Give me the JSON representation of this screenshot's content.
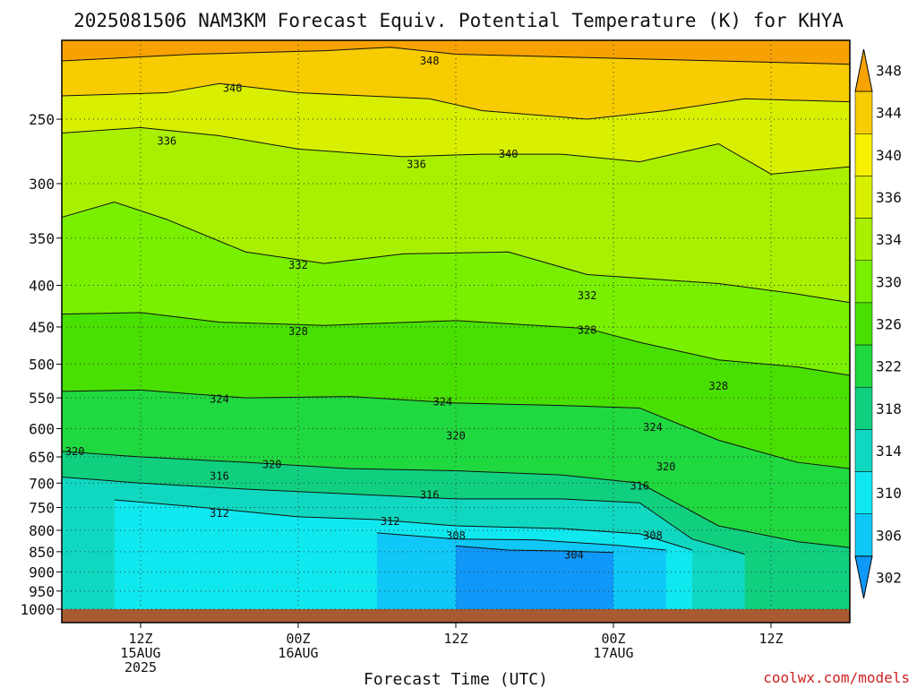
{
  "chart_data": {
    "type": "heatmap",
    "title": "2025081506 NAM3KM Forecast Equiv. Potential Temperature (K) for KHYA",
    "xlabel": "Forecast Time (UTC)",
    "ylabel": "",
    "credit": "coolwx.com/models",
    "pressure_ticks": [
      250,
      300,
      350,
      400,
      450,
      500,
      550,
      600,
      650,
      700,
      750,
      800,
      850,
      900,
      950,
      1000
    ],
    "pressure_range": [
      1000,
      200
    ],
    "time_range_hours": [
      0,
      60
    ],
    "grid": true,
    "time_ticks": [
      {
        "hour": 6,
        "lines": [
          "12Z",
          "15AUG",
          "2025"
        ]
      },
      {
        "hour": 18,
        "lines": [
          "00Z",
          "16AUG"
        ]
      },
      {
        "hour": 30,
        "lines": [
          "12Z"
        ]
      },
      {
        "hour": 42,
        "lines": [
          "00Z",
          "17AUG"
        ]
      },
      {
        "hour": 54,
        "lines": [
          "12Z"
        ]
      }
    ],
    "colorbar": {
      "levels": [
        348,
        344,
        340,
        336,
        334,
        330,
        326,
        322,
        318,
        314,
        310,
        306,
        302
      ],
      "colors": [
        "#f7a200",
        "#f7cc00",
        "#f7f000",
        "#d8f000",
        "#a8f000",
        "#78f000",
        "#48e000",
        "#20d840",
        "#10d080",
        "#10d8c0",
        "#10e8f0",
        "#10c8f8",
        "#1098f8"
      ]
    },
    "series": [
      {
        "name": "348",
        "level": 348,
        "values": [
          [
            0,
            212
          ],
          [
            10,
            208
          ],
          [
            20,
            206
          ],
          [
            25,
            204
          ],
          [
            30,
            208
          ],
          [
            40,
            210
          ],
          [
            50,
            212
          ],
          [
            60,
            214
          ]
        ]
      },
      {
        "name": "340",
        "level": 340,
        "values": [
          [
            0,
            234
          ],
          [
            8,
            232
          ],
          [
            12,
            226
          ],
          [
            18,
            232
          ],
          [
            28,
            236
          ],
          [
            32,
            244
          ],
          [
            40,
            250
          ],
          [
            46,
            244
          ],
          [
            52,
            236
          ],
          [
            60,
            238
          ]
        ]
      },
      {
        "name": "336",
        "level": 336,
        "values": [
          [
            0,
            260
          ],
          [
            6,
            256
          ],
          [
            12,
            262
          ],
          [
            18,
            272
          ],
          [
            26,
            278
          ],
          [
            32,
            276
          ],
          [
            38,
            276
          ],
          [
            44,
            282
          ],
          [
            50,
            268
          ],
          [
            54,
            292
          ],
          [
            60,
            286
          ]
        ]
      },
      {
        "name": "332",
        "level": 332,
        "values": [
          [
            0,
            330
          ],
          [
            4,
            316
          ],
          [
            8,
            332
          ],
          [
            14,
            364
          ],
          [
            20,
            376
          ],
          [
            26,
            366
          ],
          [
            34,
            364
          ],
          [
            40,
            388
          ],
          [
            44,
            392
          ],
          [
            50,
            398
          ],
          [
            56,
            410
          ],
          [
            60,
            420
          ]
        ]
      },
      {
        "name": "328",
        "level": 328,
        "values": [
          [
            0,
            434
          ],
          [
            6,
            432
          ],
          [
            12,
            444
          ],
          [
            20,
            448
          ],
          [
            30,
            442
          ],
          [
            40,
            452
          ],
          [
            44,
            470
          ],
          [
            50,
            494
          ],
          [
            56,
            504
          ],
          [
            60,
            516
          ]
        ]
      },
      {
        "name": "324",
        "level": 324,
        "values": [
          [
            0,
            540
          ],
          [
            6,
            538
          ],
          [
            14,
            550
          ],
          [
            22,
            548
          ],
          [
            30,
            558
          ],
          [
            38,
            562
          ],
          [
            44,
            566
          ],
          [
            50,
            620
          ],
          [
            56,
            660
          ],
          [
            60,
            672
          ]
        ]
      },
      {
        "name": "320",
        "level": 320,
        "values": [
          [
            0,
            640
          ],
          [
            6,
            650
          ],
          [
            14,
            660
          ],
          [
            22,
            672
          ],
          [
            30,
            676
          ],
          [
            38,
            684
          ],
          [
            44,
            700
          ],
          [
            50,
            790
          ],
          [
            56,
            826
          ],
          [
            60,
            840
          ]
        ]
      },
      {
        "name": "316",
        "level": 316,
        "values": [
          [
            0,
            688
          ],
          [
            6,
            700
          ],
          [
            14,
            712
          ],
          [
            22,
            722
          ],
          [
            30,
            732
          ],
          [
            38,
            732
          ],
          [
            44,
            740
          ],
          [
            48,
            820
          ],
          [
            52,
            856
          ]
        ]
      },
      {
        "name": "312",
        "level": 312,
        "values": [
          [
            4,
            734
          ],
          [
            10,
            748
          ],
          [
            18,
            770
          ],
          [
            24,
            776
          ],
          [
            30,
            790
          ],
          [
            38,
            796
          ],
          [
            44,
            808
          ],
          [
            48,
            846
          ]
        ]
      },
      {
        "name": "308",
        "level": 308,
        "values": [
          [
            24,
            806
          ],
          [
            30,
            820
          ],
          [
            36,
            822
          ],
          [
            42,
            834
          ],
          [
            46,
            846
          ]
        ]
      },
      {
        "name": "304",
        "level": 304,
        "values": [
          [
            30,
            836
          ],
          [
            34,
            846
          ],
          [
            38,
            848
          ],
          [
            42,
            852
          ]
        ]
      }
    ],
    "contour_labels": [
      {
        "value": 348,
        "hour": 28,
        "p": 212
      },
      {
        "value": 340,
        "hour": 13,
        "p": 229
      },
      {
        "value": 340,
        "hour": 34,
        "p": 276
      },
      {
        "value": 336,
        "hour": 8,
        "p": 266
      },
      {
        "value": 336,
        "hour": 27,
        "p": 284
      },
      {
        "value": 332,
        "hour": 18,
        "p": 378
      },
      {
        "value": 332,
        "hour": 40,
        "p": 412
      },
      {
        "value": 328,
        "hour": 18,
        "p": 456
      },
      {
        "value": 328,
        "hour": 40,
        "p": 454
      },
      {
        "value": 328,
        "hour": 50,
        "p": 532
      },
      {
        "value": 324,
        "hour": 12,
        "p": 552
      },
      {
        "value": 324,
        "hour": 29,
        "p": 556
      },
      {
        "value": 324,
        "hour": 45,
        "p": 598
      },
      {
        "value": 320,
        "hour": 1,
        "p": 640
      },
      {
        "value": 320,
        "hour": 16,
        "p": 664
      },
      {
        "value": 320,
        "hour": 30,
        "p": 612
      },
      {
        "value": 320,
        "hour": 46,
        "p": 668
      },
      {
        "value": 316,
        "hour": 12,
        "p": 686
      },
      {
        "value": 316,
        "hour": 28,
        "p": 724
      },
      {
        "value": 316,
        "hour": 44,
        "p": 706
      },
      {
        "value": 312,
        "hour": 12,
        "p": 762
      },
      {
        "value": 312,
        "hour": 25,
        "p": 780
      },
      {
        "value": 308,
        "hour": 30,
        "p": 812
      },
      {
        "value": 304,
        "hour": 39,
        "p": 858
      },
      {
        "value": 308,
        "hour": 45,
        "p": 812
      }
    ]
  }
}
